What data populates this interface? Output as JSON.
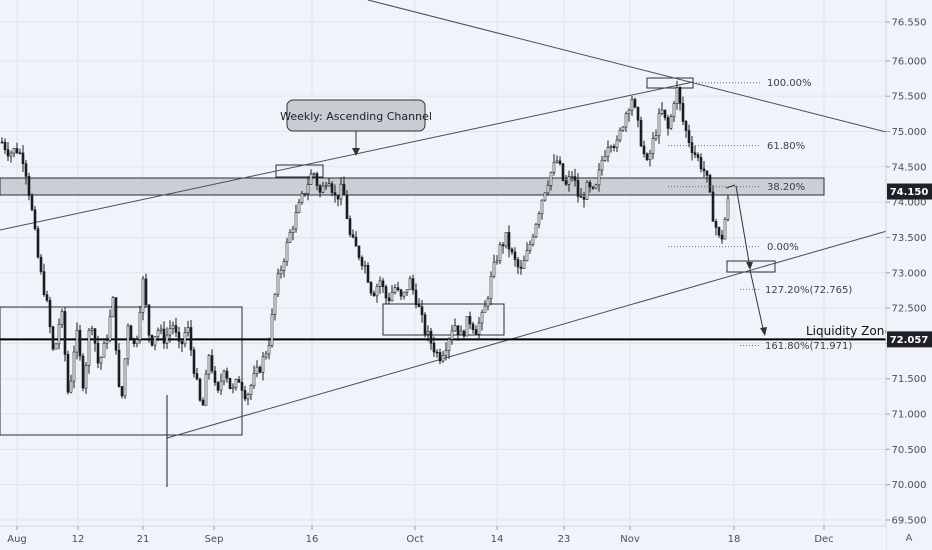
{
  "chart_data": {
    "type": "candlestick",
    "y_axis": {
      "range": [
        69.45,
        76.85
      ],
      "ticks": [
        "76.550",
        "76.000",
        "75.500",
        "75.000",
        "74.500",
        "74.000",
        "73.500",
        "73.000",
        "72.500",
        "72.000",
        "71.500",
        "71.000",
        "70.500",
        "70.000",
        "69.500"
      ]
    },
    "x_axis": {
      "ticks": [
        "Aug",
        "12",
        "21",
        "Sep",
        "16",
        "Oct",
        "14",
        "23",
        "Nov",
        "18",
        "Dec"
      ]
    },
    "price_badges": [
      {
        "label": "74.150",
        "value": 74.15
      },
      {
        "label": "72.057",
        "value": 72.057
      }
    ],
    "fib_levels": [
      {
        "label": "100.00%",
        "value": 75.69
      },
      {
        "label": "61.80%",
        "value": 74.8
      },
      {
        "label": "38.20%",
        "value": 74.22
      },
      {
        "label": "0.00%",
        "value": 73.37
      },
      {
        "label": "127.20%(72.765)",
        "value": 72.765
      },
      {
        "label": "161.80%(71.971)",
        "value": 71.971
      }
    ],
    "annotations": {
      "callout": "Weekly: Ascending Channel",
      "zone_label": "Liquidity Zone"
    },
    "corner_label": "A",
    "price_path": [
      74.85,
      74.7,
      74.75,
      74.6,
      73.9,
      73.1,
      72.6,
      71.8,
      72.5,
      71.2,
      72.2,
      71.4,
      72.4,
      71.7,
      72.0,
      72.6,
      71.0,
      72.3,
      71.9,
      72.9,
      72.0,
      72.2,
      72.05,
      72.3,
      71.9,
      72.25,
      71.6,
      71.0,
      71.9,
      71.2,
      71.7,
      71.3,
      71.5,
      71.25,
      71.5,
      71.7,
      72.0,
      72.8,
      73.2,
      73.6,
      73.9,
      74.2,
      74.45,
      74.1,
      74.4,
      74.05,
      74.2,
      73.5,
      73.3,
      73.1,
      72.7,
      72.9,
      72.6,
      72.8,
      72.6,
      72.9,
      72.6,
      72.2,
      72.0,
      71.8,
      72.0,
      72.3,
      72.1,
      72.35,
      72.2,
      72.4,
      72.9,
      73.3,
      73.5,
      73.2,
      73.0,
      73.3,
      73.7,
      74.1,
      74.4,
      74.6,
      74.2,
      74.4,
      74.0,
      74.2,
      74.1,
      74.6,
      74.9,
      74.8,
      75.2,
      75.5,
      75.0,
      74.5,
      74.9,
      75.3,
      75.0,
      75.65,
      75.1,
      74.8,
      74.6,
      74.4,
      73.8,
      73.4,
      74.0
    ]
  }
}
